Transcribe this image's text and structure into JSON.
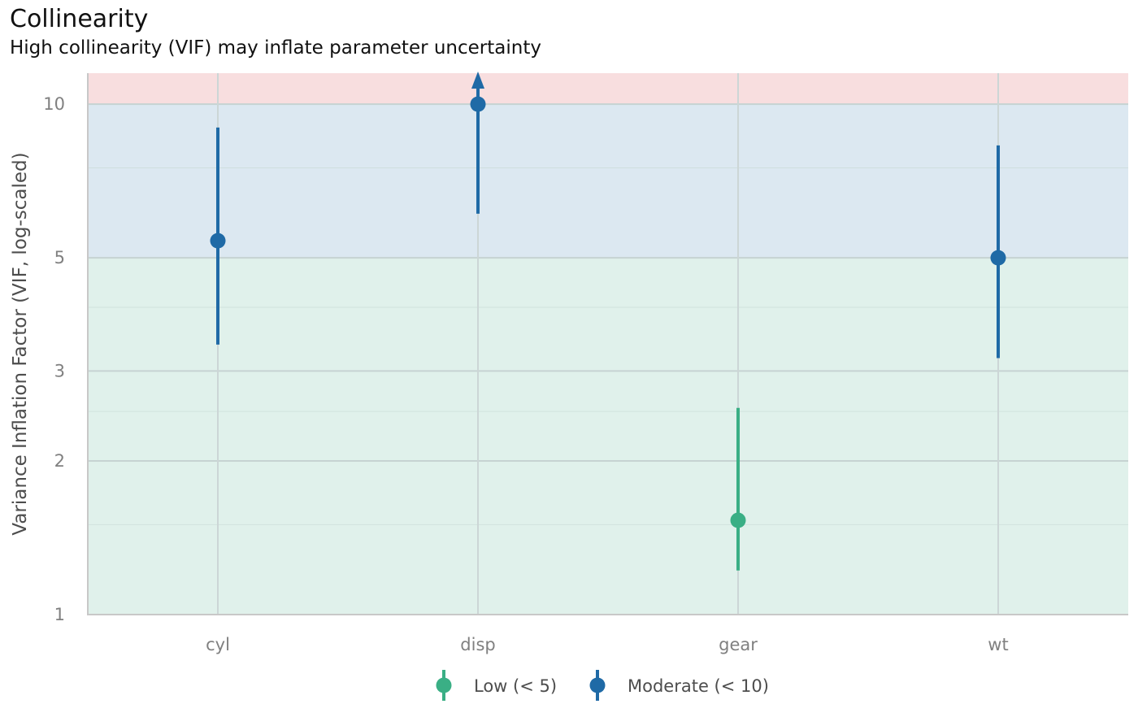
{
  "chart_data": {
    "type": "scatter",
    "title": "Collinearity",
    "subtitle": "High collinearity (VIF) may inflate parameter uncertainty",
    "xlabel": "",
    "ylabel": "Variance Inflation Factor (VIF, log-scaled)",
    "y_scale": "log",
    "ylim": [
      1,
      11.5
    ],
    "yticks": [
      1,
      2,
      3,
      5,
      10
    ],
    "ytick_labels": [
      "1",
      "2",
      "3",
      "5",
      "10"
    ],
    "y_minor_ticks": [
      1.5,
      2.5,
      4,
      7.5
    ],
    "grid": true,
    "categories": [
      "cyl",
      "disp",
      "gear",
      "wt"
    ],
    "bands": [
      {
        "name": "low",
        "from": 1,
        "to": 5,
        "color": "#e0f1eb"
      },
      {
        "name": "moderate",
        "from": 5,
        "to": 10,
        "color": "#dce8f1"
      },
      {
        "name": "high",
        "from": 10,
        "to": 11.5,
        "color": "#f8dedf"
      }
    ],
    "series": [
      {
        "name": "Low (< 5)",
        "color": "#3aaf85",
        "points": [
          {
            "x": "gear",
            "y": 1.53,
            "low": 1.22,
            "high": 2.54
          }
        ]
      },
      {
        "name": "Moderate (< 10)",
        "color": "#1f6aa6",
        "points": [
          {
            "x": "cyl",
            "y": 5.4,
            "low": 3.38,
            "high": 9.0
          },
          {
            "x": "disp",
            "y": 10.0,
            "low": 6.1,
            "high": 11.5,
            "truncated_high": true
          },
          {
            "x": "wt",
            "y": 5.0,
            "low": 3.18,
            "high": 8.3
          }
        ]
      }
    ],
    "legend": {
      "position": "bottom"
    }
  }
}
